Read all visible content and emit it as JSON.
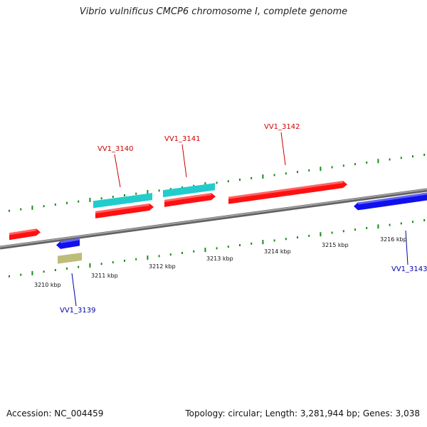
{
  "title": "Vibrio vulnificus CMCP6 chromosome I, complete genome",
  "footer": {
    "accession": "Accession: NC_004459",
    "summary": "Topology: circular; Length: 3,281,944 bp; Genes: 3,038"
  },
  "colors": {
    "backbone": "#808080",
    "forward_cds": "#ff1010",
    "reverse_cds": "#1010ee",
    "rna": "#22cccc",
    "other": "#bdbd7a",
    "ticks": "#1a8a1a",
    "forward_label": "#cc0000",
    "reverse_label": "#0000aa"
  },
  "ruler": {
    "tick_labels": [
      "3210 kbp",
      "3211 kbp",
      "3212 kbp",
      "3213 kbp",
      "3214 kbp",
      "3215 kbp",
      "3216 kbp"
    ]
  },
  "gene_labels": [
    {
      "name": "VV1_3140",
      "strand": "forward"
    },
    {
      "name": "VV1_3141",
      "strand": "forward"
    },
    {
      "name": "VV1_3142",
      "strand": "forward"
    },
    {
      "name": "VV1_3143",
      "strand": "reverse"
    },
    {
      "name": "VV1_3139",
      "strand": "reverse"
    }
  ]
}
